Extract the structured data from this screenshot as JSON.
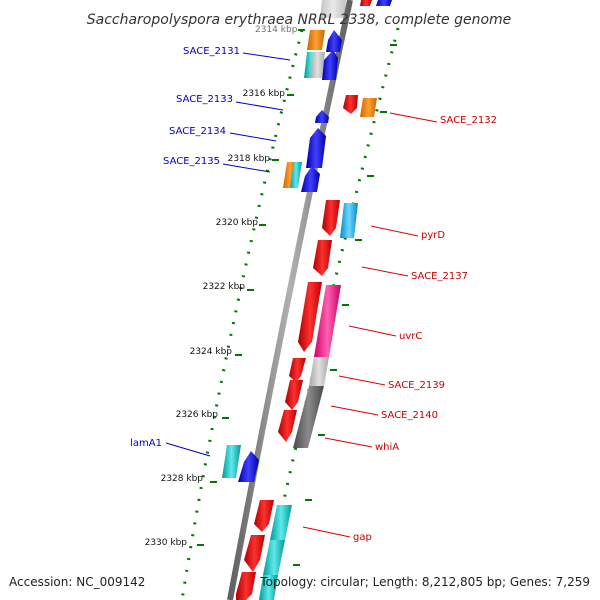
{
  "title": "Saccharopolyspora erythraea NRRL 2338, complete genome",
  "accession": "Accession: NC_009142",
  "topology": "Topology: circular; Length: 8,212,805 bp; Genes: 7,259",
  "kbp_labels": [
    "2314 kbp",
    "2316 kbp",
    "2318 kbp",
    "2320 kbp",
    "2322 kbp",
    "2324 kbp",
    "2326 kbp",
    "2328 kbp",
    "2330 kbp"
  ],
  "left_gene_labels": [
    "SACE_2131",
    "SACE_2133",
    "SACE_2134",
    "SACE_2135",
    "lamA1"
  ],
  "right_gene_labels": [
    "SACE_2132",
    "pyrD",
    "SACE_2137",
    "uvrC",
    "SACE_2139",
    "SACE_2140",
    "whiA",
    "gap"
  ],
  "colors": {
    "forward_gene": "#0000cc",
    "reverse_gene": "#cc0000",
    "backbone": "#808080",
    "tick_dots": "#007700",
    "orange": "#ff8c00",
    "cyan": "#00c8c8",
    "sky": "#22b8f0",
    "magenta": "#ff2090",
    "light_gray": "#c0c0c0",
    "dark_gray": "#666666"
  }
}
